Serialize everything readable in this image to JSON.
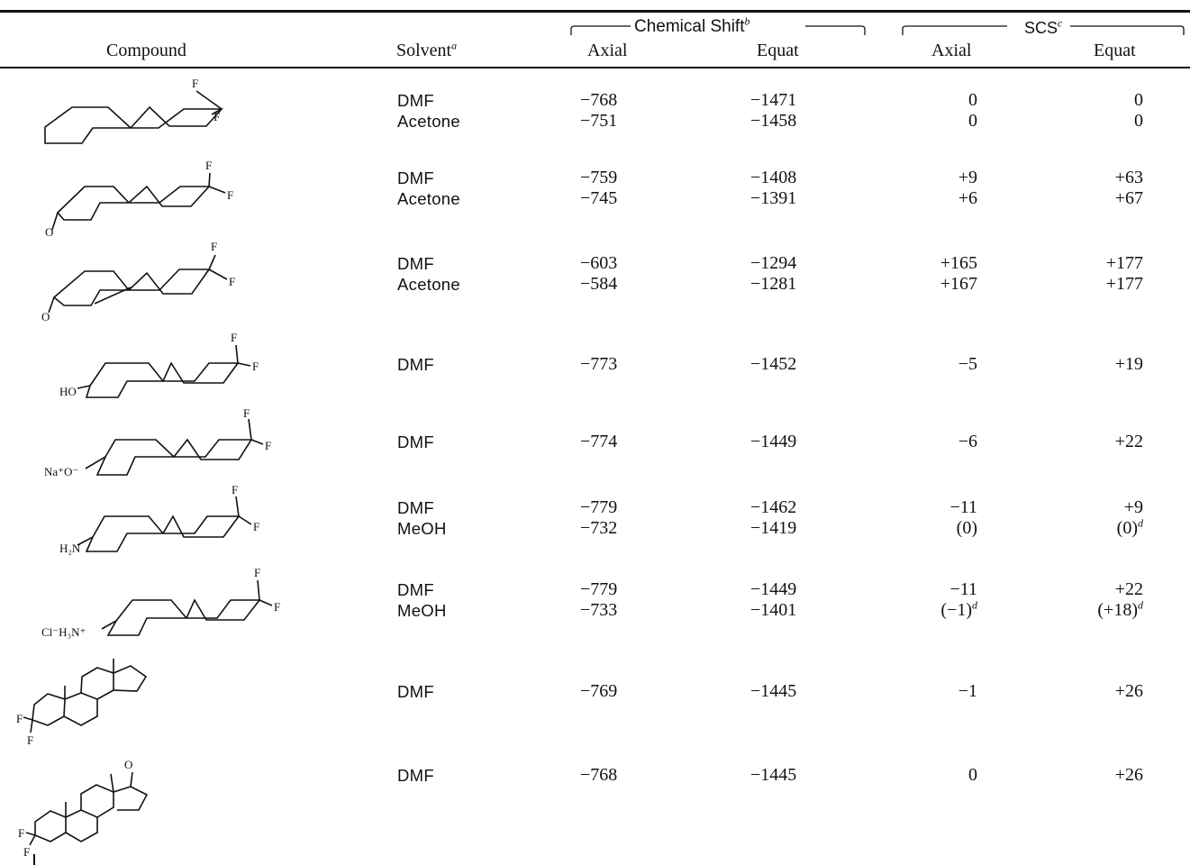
{
  "header": {
    "compound": "Compound",
    "solvent": "Solvent",
    "solvent_note": "a",
    "chemical_shift": "Chemical Shift",
    "chemical_shift_note": "b",
    "scs": "SCS",
    "scs_note": "c",
    "axial": "Axial",
    "equat": "Equat"
  },
  "rows": [
    {
      "solvents": [
        "DMF",
        "Acetone"
      ],
      "axial_shift": [
        "−768",
        "−751"
      ],
      "equat_shift": [
        "−1471",
        "−1458"
      ],
      "scs_axial": [
        "0",
        "0"
      ],
      "scs_equat": [
        "0",
        "0"
      ]
    },
    {
      "solvents": [
        "DMF",
        "Acetone"
      ],
      "axial_shift": [
        "−759",
        "−745"
      ],
      "equat_shift": [
        "−1408",
        "−1391"
      ],
      "scs_axial": [
        "+9",
        "+6"
      ],
      "scs_equat": [
        "+63",
        "+67"
      ]
    },
    {
      "solvents": [
        "DMF",
        "Acetone"
      ],
      "axial_shift": [
        "−603",
        "−584"
      ],
      "equat_shift": [
        "−1294",
        "−1281"
      ],
      "scs_axial": [
        "+165",
        "+167"
      ],
      "scs_equat": [
        "+177",
        "+177"
      ]
    },
    {
      "solvents": [
        "DMF"
      ],
      "axial_shift": [
        "−773"
      ],
      "equat_shift": [
        "−1452"
      ],
      "scs_axial": [
        "−5"
      ],
      "scs_equat": [
        "+19"
      ]
    },
    {
      "solvents": [
        "DMF"
      ],
      "axial_shift": [
        "−774"
      ],
      "equat_shift": [
        "−1449"
      ],
      "scs_axial": [
        "−6"
      ],
      "scs_equat": [
        "+22"
      ]
    },
    {
      "solvents": [
        "DMF",
        "MeOH"
      ],
      "axial_shift": [
        "−779",
        "−732"
      ],
      "equat_shift": [
        "−1462",
        "−1419"
      ],
      "scs_axial": [
        "−11",
        "(0)"
      ],
      "scs_equat": [
        "+9",
        "(0)"
      ],
      "scs_equat_notes": [
        "",
        "d"
      ]
    },
    {
      "solvents": [
        "DMF",
        "MeOH"
      ],
      "axial_shift": [
        "−779",
        "−733"
      ],
      "equat_shift": [
        "−1449",
        "−1401"
      ],
      "scs_axial": [
        "−11",
        "(−1)"
      ],
      "scs_axial_notes": [
        "",
        "d"
      ],
      "scs_equat": [
        "+22",
        "(+18)"
      ],
      "scs_equat_notes": [
        "",
        "d"
      ]
    },
    {
      "solvents": [
        "DMF"
      ],
      "axial_shift": [
        "−769"
      ],
      "equat_shift": [
        "−1445"
      ],
      "scs_axial": [
        "−1"
      ],
      "scs_equat": [
        "+26"
      ]
    },
    {
      "solvents": [
        "DMF"
      ],
      "axial_shift": [
        "−768"
      ],
      "equat_shift": [
        "−1445"
      ],
      "scs_axial": [
        "0"
      ],
      "scs_equat": [
        "+26"
      ]
    }
  ],
  "structure_labels": {
    "F": "F",
    "O": "O",
    "HO": "HO",
    "NaO": "Na⁺O⁻",
    "H2N": "H₂N",
    "ClH3N": "Cl⁻H₃N⁺"
  }
}
